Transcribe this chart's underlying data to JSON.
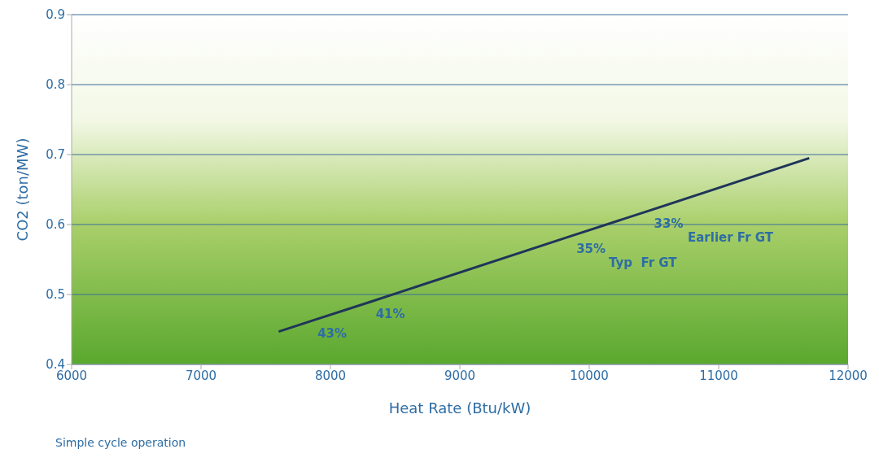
{
  "chart_data": {
    "type": "line",
    "xlabel": "Heat Rate (Btu/kW)",
    "ylabel": "CO2 (ton/MW)",
    "x": [
      7600,
      7850,
      8300,
      9850,
      10450,
      11700
    ],
    "series": [
      {
        "color": "#1f3559",
        "values": [
          0.447,
          0.462,
          0.489,
          0.583,
          0.619,
          0.695
        ]
      }
    ],
    "xlim": [
      6000,
      12000
    ],
    "xticks": [
      6000,
      7000,
      8000,
      9000,
      10000,
      11000,
      12000
    ],
    "ylim": [
      0.4,
      0.9
    ],
    "yticks": [
      0.4,
      0.5,
      0.6,
      0.7,
      0.8,
      0.9
    ],
    "grid": "y",
    "marker": "none",
    "line_style": "solid",
    "annotations": [
      {
        "text": "43%",
        "x": 7850,
        "y": 0.462
      },
      {
        "text": "41%",
        "x": 8300,
        "y": 0.489
      },
      {
        "text": "35%",
        "x": 9850,
        "y": 0.583
      },
      "Typ  Fr GT",
      {
        "text": "33%",
        "x": 10450,
        "y": 0.619
      },
      "Earlier Fr GT",
      "Simple cycle operation"
    ]
  }
}
